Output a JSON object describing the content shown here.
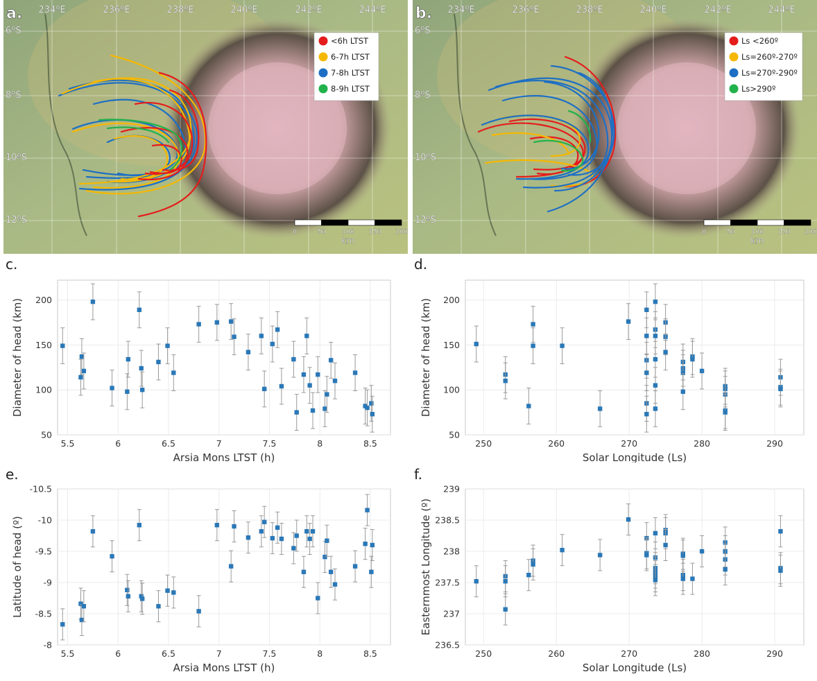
{
  "maps": [
    {
      "panel_label": "a.",
      "lon_labels": [
        "234ºE",
        "236ºE",
        "238ºE",
        "240ºE",
        "242ºE",
        "244ºE"
      ],
      "lat_labels": [
        "6ºS",
        "8ºS",
        "10ºS",
        "12ºS"
      ],
      "legend": [
        {
          "label": "<6h LTST",
          "color": "#e51c1c"
        },
        {
          "label": "6-7h LTST",
          "color": "#f5b800"
        },
        {
          "label": "7-8h LTST",
          "color": "#1d6fc4"
        },
        {
          "label": "8-9h LTST",
          "color": "#22b24c"
        }
      ],
      "scale_ticks": [
        "0",
        "50",
        "100",
        "150",
        "200"
      ],
      "scale_unit": "km"
    },
    {
      "panel_label": "b.",
      "lon_labels": [
        "234ºE",
        "236ºE",
        "238ºE",
        "240ºE",
        "242ºE",
        "244ºE"
      ],
      "lat_labels": [
        "6ºS",
        "8ºS",
        "10ºS",
        "12ºS"
      ],
      "legend": [
        {
          "label": "Ls <260º",
          "color": "#e51c1c"
        },
        {
          "label": "Ls=260º-270º",
          "color": "#f5b800"
        },
        {
          "label": "Ls=270º-290º",
          "color": "#1d6fc4"
        },
        {
          "label": "Ls>290º",
          "color": "#22b24c"
        }
      ],
      "scale_ticks": [
        "0",
        "50",
        "100",
        "150",
        "200"
      ],
      "scale_unit": "km"
    }
  ],
  "chart_data": [
    {
      "panel": "c.",
      "type": "scatter",
      "xlabel": "Arsia Mons LTST (h)",
      "ylabel": "Diameter of head (km)",
      "xlim": [
        5.4,
        8.7
      ],
      "ylim": [
        50,
        222
      ],
      "xticks": [
        5.5,
        6,
        6.5,
        7,
        7.5,
        8,
        8.5
      ],
      "xtick_labels": [
        "5.5",
        "6",
        "6.5",
        "7",
        "7.5",
        "8",
        "8.5"
      ],
      "yticks": [
        50,
        100,
        150,
        200
      ],
      "ytick_labels": [
        "50",
        "100",
        "150",
        "200"
      ],
      "grid": true,
      "marker_color": "#2a78b7",
      "errorbar_color": "#999999",
      "points": [
        [
          5.45,
          149,
          20
        ],
        [
          5.63,
          114,
          20
        ],
        [
          5.64,
          137,
          20
        ],
        [
          5.66,
          121,
          20
        ],
        [
          5.75,
          198,
          20
        ],
        [
          5.94,
          102,
          20
        ],
        [
          6.09,
          98,
          20
        ],
        [
          6.1,
          134,
          20
        ],
        [
          6.21,
          189,
          20
        ],
        [
          6.23,
          124,
          20
        ],
        [
          6.24,
          100,
          20
        ],
        [
          6.4,
          131,
          20
        ],
        [
          6.49,
          149,
          20
        ],
        [
          6.55,
          119,
          20
        ],
        [
          6.8,
          173,
          20
        ],
        [
          6.98,
          175,
          20
        ],
        [
          7.12,
          176,
          20
        ],
        [
          7.15,
          159,
          20
        ],
        [
          7.29,
          142,
          20
        ],
        [
          7.42,
          160,
          20
        ],
        [
          7.45,
          101,
          20
        ],
        [
          7.53,
          151,
          20
        ],
        [
          7.58,
          167,
          20
        ],
        [
          7.62,
          104,
          20
        ],
        [
          7.74,
          134,
          20
        ],
        [
          7.77,
          75,
          20
        ],
        [
          7.84,
          117,
          20
        ],
        [
          7.87,
          160,
          20
        ],
        [
          7.9,
          105,
          20
        ],
        [
          7.93,
          77,
          20
        ],
        [
          7.98,
          117,
          20
        ],
        [
          8.05,
          79,
          20
        ],
        [
          8.07,
          95,
          20
        ],
        [
          8.11,
          133,
          20
        ],
        [
          8.15,
          110,
          20
        ],
        [
          8.35,
          119,
          20
        ],
        [
          8.45,
          82,
          20
        ],
        [
          8.47,
          80,
          20
        ],
        [
          8.51,
          85,
          20
        ],
        [
          8.52,
          73,
          20
        ]
      ]
    },
    {
      "panel": "d.",
      "type": "scatter",
      "xlabel": "Solar Longitude (Ls)",
      "ylabel": "Diameter of head (km)",
      "xlim": [
        247.5,
        294
      ],
      "ylim": [
        50,
        222
      ],
      "xticks": [
        250,
        260,
        270,
        280,
        290
      ],
      "xtick_labels": [
        "250",
        "260",
        "270",
        "280",
        "290"
      ],
      "yticks": [
        50,
        100,
        150,
        200
      ],
      "ytick_labels": [
        "50",
        "100",
        "150",
        "200"
      ],
      "grid": true,
      "marker_color": "#2a78b7",
      "errorbar_color": "#999999",
      "points": [
        [
          249.0,
          151,
          20
        ],
        [
          253.0,
          117,
          20
        ],
        [
          253.0,
          110,
          20
        ],
        [
          256.2,
          82,
          20
        ],
        [
          256.8,
          173,
          20
        ],
        [
          256.8,
          149,
          20
        ],
        [
          260.8,
          149,
          20
        ],
        [
          266.0,
          79,
          20
        ],
        [
          269.9,
          176,
          20
        ],
        [
          272.4,
          189,
          20
        ],
        [
          272.4,
          160,
          20
        ],
        [
          272.4,
          133,
          20
        ],
        [
          272.4,
          119,
          20
        ],
        [
          272.4,
          85,
          20
        ],
        [
          272.4,
          73,
          20
        ],
        [
          273.6,
          198,
          20
        ],
        [
          273.6,
          167,
          20
        ],
        [
          273.6,
          160,
          20
        ],
        [
          273.6,
          134,
          20
        ],
        [
          273.6,
          105,
          20
        ],
        [
          273.6,
          79,
          20
        ],
        [
          275.0,
          175,
          20
        ],
        [
          275.0,
          159,
          20
        ],
        [
          275.0,
          142,
          20
        ],
        [
          277.4,
          131,
          20
        ],
        [
          277.4,
          124,
          20
        ],
        [
          277.4,
          119,
          20
        ],
        [
          277.4,
          98,
          20
        ],
        [
          278.7,
          137,
          20
        ],
        [
          278.7,
          134,
          20
        ],
        [
          280.0,
          121,
          20
        ],
        [
          283.2,
          104,
          20
        ],
        [
          283.2,
          101,
          20
        ],
        [
          283.2,
          95,
          20
        ],
        [
          283.2,
          77,
          20
        ],
        [
          283.2,
          75,
          20
        ],
        [
          290.8,
          114,
          20
        ],
        [
          290.8,
          103,
          20
        ],
        [
          290.8,
          101,
          20
        ]
      ]
    },
    {
      "panel": "e.",
      "type": "scatter",
      "xlabel": "Arsia Mons LTST (h)",
      "ylabel": "Latitude of head (º)",
      "xlim": [
        5.4,
        8.7
      ],
      "ylim": [
        -10.5,
        -8.0
      ],
      "y_inverted": true,
      "xticks": [
        5.5,
        6,
        6.5,
        7,
        7.5,
        8,
        8.5
      ],
      "xtick_labels": [
        "5.5",
        "6",
        "6.5",
        "7",
        "7.5",
        "8",
        "8.5"
      ],
      "yticks": [
        -10.5,
        -10,
        -9.5,
        -9,
        -8.5,
        -8
      ],
      "ytick_labels": [
        "-10.5",
        "-10",
        "-9.5",
        "-9",
        "-8.5",
        "-8"
      ],
      "grid": true,
      "marker_color": "#2a78b7",
      "errorbar_color": "#999999",
      "points": [
        [
          5.45,
          -8.33,
          0.25
        ],
        [
          5.63,
          -8.66,
          0.25
        ],
        [
          5.64,
          -8.4,
          0.25
        ],
        [
          5.66,
          -8.62,
          0.25
        ],
        [
          5.75,
          -9.82,
          0.25
        ],
        [
          5.94,
          -9.42,
          0.25
        ],
        [
          6.09,
          -8.88,
          0.25
        ],
        [
          6.1,
          -8.78,
          0.25
        ],
        [
          6.21,
          -9.92,
          0.25
        ],
        [
          6.23,
          -8.78,
          0.25
        ],
        [
          6.24,
          -8.74,
          0.25
        ],
        [
          6.4,
          -8.62,
          0.25
        ],
        [
          6.49,
          -8.87,
          0.25
        ],
        [
          6.55,
          -8.84,
          0.25
        ],
        [
          6.8,
          -8.54,
          0.25
        ],
        [
          6.98,
          -9.92,
          0.25
        ],
        [
          7.12,
          -9.26,
          0.25
        ],
        [
          7.15,
          -9.9,
          0.25
        ],
        [
          7.29,
          -9.72,
          0.25
        ],
        [
          7.42,
          -9.82,
          0.25
        ],
        [
          7.45,
          -9.97,
          0.25
        ],
        [
          7.53,
          -9.71,
          0.25
        ],
        [
          7.58,
          -9.88,
          0.25
        ],
        [
          7.62,
          -9.7,
          0.25
        ],
        [
          7.74,
          -9.55,
          0.25
        ],
        [
          7.77,
          -9.75,
          0.25
        ],
        [
          7.84,
          -9.17,
          0.25
        ],
        [
          7.87,
          -9.82,
          0.25
        ],
        [
          7.9,
          -9.7,
          0.25
        ],
        [
          7.93,
          -9.82,
          0.25
        ],
        [
          7.98,
          -8.75,
          0.25
        ],
        [
          8.05,
          -9.41,
          0.25
        ],
        [
          8.07,
          -9.67,
          0.25
        ],
        [
          8.11,
          -9.17,
          0.25
        ],
        [
          8.15,
          -8.97,
          0.25
        ],
        [
          8.35,
          -9.26,
          0.25
        ],
        [
          8.45,
          -9.62,
          0.25
        ],
        [
          8.47,
          -10.16,
          0.25
        ],
        [
          8.51,
          -9.17,
          0.25
        ],
        [
          8.52,
          -9.6,
          0.25
        ]
      ]
    },
    {
      "panel": "f.",
      "type": "scatter",
      "xlabel": "Solar Longitude (Ls)",
      "ylabel": "Easternmost Longitude (º)",
      "xlim": [
        247.5,
        294
      ],
      "ylim": [
        236.5,
        239
      ],
      "xticks": [
        250,
        260,
        270,
        280,
        290
      ],
      "xtick_labels": [
        "250",
        "260",
        "270",
        "280",
        "290"
      ],
      "yticks": [
        236.5,
        237,
        237.5,
        238,
        238.5,
        239
      ],
      "ytick_labels": [
        "236.5",
        "237",
        "237.5",
        "238",
        "238.5",
        "239"
      ],
      "grid": true,
      "marker_color": "#2a78b7",
      "errorbar_color": "#999999",
      "points": [
        [
          249.0,
          237.52,
          0.25
        ],
        [
          253.0,
          237.6,
          0.25
        ],
        [
          253.0,
          237.52,
          0.25
        ],
        [
          253.0,
          237.07,
          0.25
        ],
        [
          256.2,
          237.62,
          0.25
        ],
        [
          256.8,
          237.85,
          0.25
        ],
        [
          256.8,
          237.79,
          0.25
        ],
        [
          260.8,
          238.02,
          0.25
        ],
        [
          266.0,
          237.94,
          0.25
        ],
        [
          269.9,
          238.51,
          0.25
        ],
        [
          272.4,
          238.21,
          0.25
        ],
        [
          272.4,
          237.97,
          0.25
        ],
        [
          272.4,
          237.94,
          0.25
        ],
        [
          273.6,
          238.29,
          0.25
        ],
        [
          273.6,
          237.9,
          0.25
        ],
        [
          273.6,
          237.73,
          0.25
        ],
        [
          273.6,
          237.66,
          0.25
        ],
        [
          273.6,
          237.6,
          0.25
        ],
        [
          273.6,
          237.54,
          0.25
        ],
        [
          275.0,
          238.34,
          0.25
        ],
        [
          275.0,
          238.29,
          0.25
        ],
        [
          275.0,
          238.1,
          0.25
        ],
        [
          277.4,
          237.96,
          0.25
        ],
        [
          277.4,
          237.93,
          0.25
        ],
        [
          277.4,
          237.62,
          0.25
        ],
        [
          277.4,
          237.56,
          0.25
        ],
        [
          278.7,
          237.56,
          0.25
        ],
        [
          280.0,
          238.0,
          0.25
        ],
        [
          283.2,
          238.14,
          0.25
        ],
        [
          283.2,
          238.0,
          0.25
        ],
        [
          283.2,
          237.87,
          0.25
        ],
        [
          283.2,
          237.71,
          0.25
        ],
        [
          290.8,
          238.32,
          0.25
        ],
        [
          290.8,
          237.73,
          0.25
        ],
        [
          290.8,
          237.69,
          0.25
        ]
      ]
    }
  ]
}
